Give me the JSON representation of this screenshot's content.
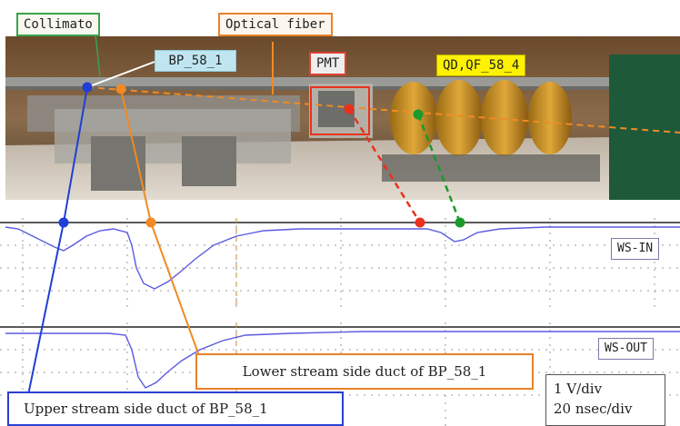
{
  "labels": {
    "collimator": "Collimato",
    "optical_fiber": "Optical fiber",
    "bpm": "BP_58_1",
    "pmt": "PMT",
    "quad": "QD,QF_58_4",
    "ws_in": "WS-IN",
    "ws_out": "WS-OUT",
    "lower_stream": "Lower stream side duct of BP_58_1",
    "upper_stream": "Upper stream side duct of BP_58_1"
  },
  "scope_settings": {
    "vertical": "1 V/div",
    "horizontal": "20 nsec/div"
  },
  "colors": {
    "upper_marker": "#1f3fd6",
    "lower_marker": "#f08a24",
    "pmt_marker": "#e8321e",
    "quad_marker": "#1a9a2a",
    "trace": "#5a5ae0"
  }
}
